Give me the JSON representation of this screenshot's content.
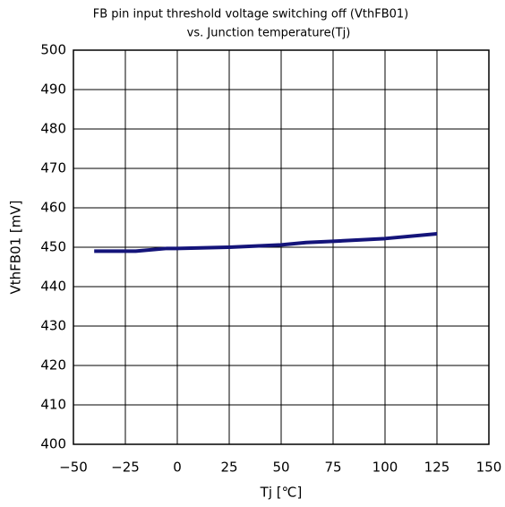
{
  "chart_data": {
    "type": "line",
    "title": "FB pin input threshold voltage switching off (VthFB01)",
    "subtitle": "vs. Junction temperature(Tj)",
    "x_label": "Tj [℃]",
    "y_label": "VthFB01 [mV]",
    "x": [
      -40,
      -20,
      -5,
      0,
      25,
      50,
      62,
      75,
      100,
      125
    ],
    "series": [
      {
        "name": "VthFB01",
        "color": "#14147a",
        "values": [
          449,
          449,
          449.7,
          449.7,
          450,
          450.6,
          451.2,
          451.5,
          452.2,
          453.4
        ]
      }
    ],
    "xlim": [
      -50,
      150
    ],
    "xticks": [
      {
        "value": -50,
        "label": "−50"
      },
      {
        "value": -25,
        "label": "−25"
      },
      0,
      25,
      50,
      75,
      100,
      125,
      150
    ],
    "ylim": [
      400,
      500
    ],
    "yticks": [
      400,
      410,
      420,
      430,
      440,
      450,
      460,
      470,
      480,
      490,
      500
    ],
    "grid": true
  }
}
